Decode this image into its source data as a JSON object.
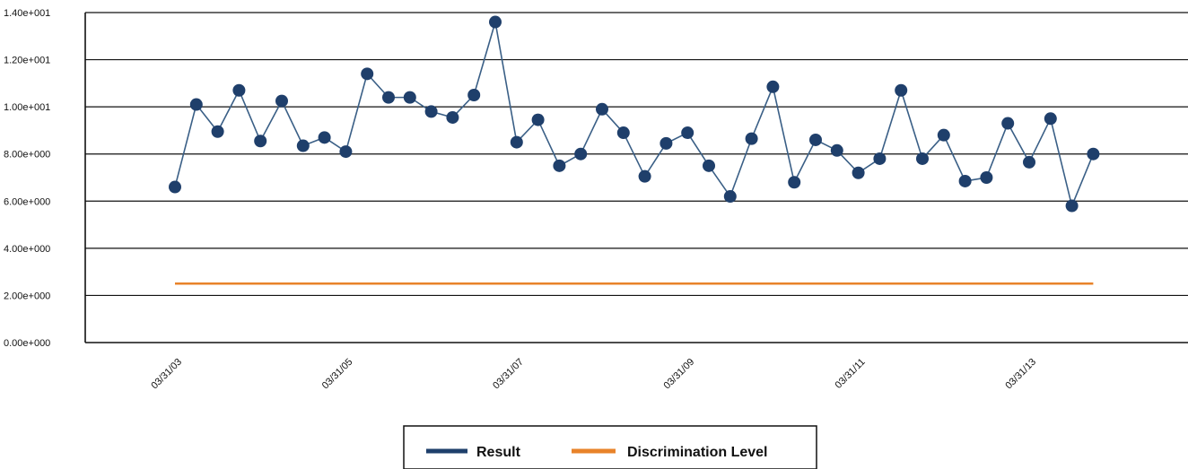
{
  "chart_data": {
    "type": "line",
    "title": "",
    "xlabel": "",
    "ylabel": "",
    "ylim": [
      0,
      14
    ],
    "grid": true,
    "legend_position": "bottom",
    "y_ticks": [
      {
        "value": 0,
        "label": "0.00e+000"
      },
      {
        "value": 2,
        "label": "2.00e+000"
      },
      {
        "value": 4,
        "label": "4.00e+000"
      },
      {
        "value": 6,
        "label": "6.00e+000"
      },
      {
        "value": 8,
        "label": "8.00e+000"
      },
      {
        "value": 10,
        "label": "1.00e+001"
      },
      {
        "value": 12,
        "label": "1.20e+001"
      },
      {
        "value": 14,
        "label": "1.40e+001"
      }
    ],
    "x_ticks": [
      {
        "index": 0,
        "label": "03/31/03"
      },
      {
        "index": 8,
        "label": "03/31/05"
      },
      {
        "index": 16,
        "label": "03/31/07"
      },
      {
        "index": 24,
        "label": "03/31/09"
      },
      {
        "index": 32,
        "label": "03/31/11"
      },
      {
        "index": 40,
        "label": "03/31/13"
      }
    ],
    "series": [
      {
        "name": "Result",
        "color": "#1f3f6b",
        "values": [
          6.6,
          10.1,
          8.95,
          10.7,
          8.55,
          10.25,
          8.35,
          8.7,
          8.1,
          11.4,
          10.4,
          10.4,
          9.8,
          9.55,
          10.5,
          13.6,
          8.5,
          9.45,
          7.5,
          8.0,
          9.9,
          8.9,
          7.05,
          8.45,
          8.9,
          7.5,
          6.2,
          8.65,
          10.85,
          6.8,
          8.6,
          8.15,
          7.2,
          7.8,
          10.7,
          7.8,
          8.8,
          6.85,
          7.0,
          9.3,
          7.65,
          9.5,
          5.8,
          8.0
        ]
      },
      {
        "name": "Discrimination Level",
        "color": "#e8832a",
        "values": [
          2.5,
          2.5,
          2.5,
          2.5,
          2.5,
          2.5,
          2.5,
          2.5,
          2.5,
          2.5,
          2.5,
          2.5,
          2.5,
          2.5,
          2.5,
          2.5,
          2.5,
          2.5,
          2.5,
          2.5,
          2.5,
          2.5,
          2.5,
          2.5,
          2.5,
          2.5,
          2.5,
          2.5,
          2.5,
          2.5,
          2.5,
          2.5,
          2.5,
          2.5,
          2.5,
          2.5,
          2.5,
          2.5,
          2.5,
          2.5,
          2.5,
          2.5,
          2.5,
          2.5
        ]
      }
    ]
  }
}
